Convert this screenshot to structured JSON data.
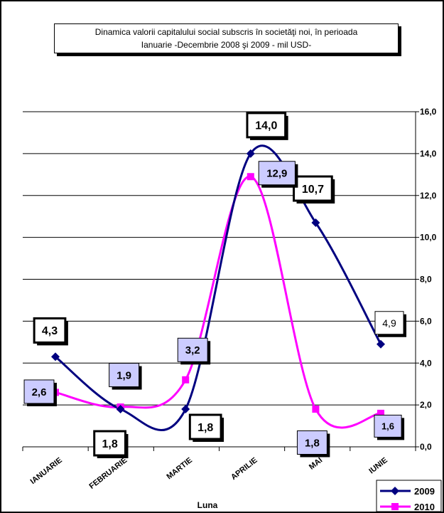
{
  "chart_data": {
    "type": "line",
    "title_lines": [
      "Dinamica  valorii capitalului social subscris în societăţi noi,  în perioada",
      "Ianuarie -Decembrie 2008 şi 2009  - mil  USD-"
    ],
    "xlabel": "Luna",
    "ylabel": "",
    "categories": [
      "IANUARIE",
      "FEBRUARIE",
      "MARTIE",
      "APRILIE",
      "MAI",
      "IUNIE"
    ],
    "y_ticks": [
      "0,0",
      "2,0",
      "4,0",
      "6,0",
      "8,0",
      "10,0",
      "12,0",
      "14,0",
      "16,0"
    ],
    "ylim": [
      0,
      16
    ],
    "grid": true,
    "legend_position": "bottom-right",
    "series": [
      {
        "name": "2009",
        "color": "#000080",
        "marker": "diamond",
        "values": [
          4.3,
          1.8,
          1.8,
          14.0,
          10.7,
          4.9
        ],
        "labels": [
          "4,3",
          "1,8",
          "1,8",
          "14,0",
          "10,7",
          "4,9"
        ]
      },
      {
        "name": "2010",
        "color": "#FF00FF",
        "marker": "square",
        "values": [
          2.6,
          1.9,
          3.2,
          12.9,
          1.8,
          1.6
        ],
        "labels": [
          "2,6",
          "1,9",
          "3,2",
          "12,9",
          "1,8",
          "1,6"
        ]
      }
    ]
  }
}
